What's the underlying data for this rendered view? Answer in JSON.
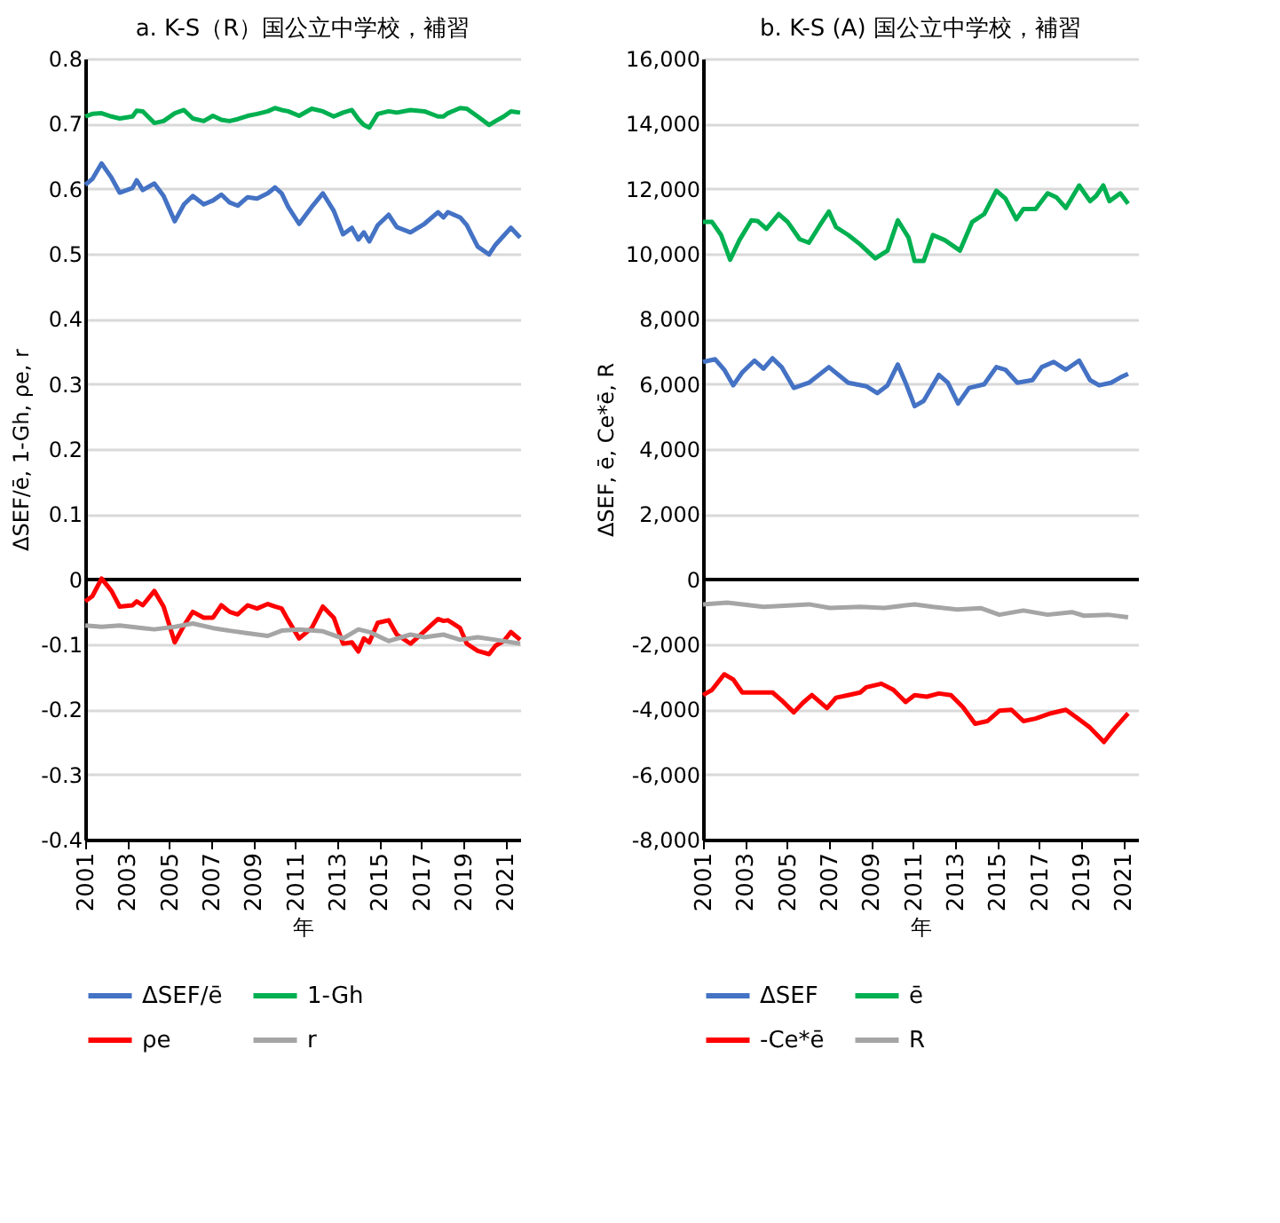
{
  "chart_data": [
    {
      "type": "line",
      "title": "a. K-S（R）国公立中学校，補習",
      "xlabel": "年",
      "ylabel": "ΔSEF/ē, 1-Gh, ρe, r",
      "xlim": [
        2001,
        2021.7
      ],
      "xticks": [
        2001,
        2003,
        2005,
        2007,
        2009,
        2011,
        2013,
        2015,
        2017,
        2019,
        2021
      ],
      "ylim": [
        -0.4,
        0.8
      ],
      "yticks": [
        -0.4,
        -0.3,
        -0.2,
        -0.1,
        0,
        0.1,
        0.2,
        0.3,
        0.4,
        0.5,
        0.6,
        0.7,
        0.8
      ],
      "grid": "y",
      "legend": "bottom",
      "line_style": "solid",
      "marker": "none",
      "x": [
        2001.0,
        2001.34,
        2001.78,
        2002.25,
        2002.64,
        2003.25,
        2003.45,
        2003.74,
        2004.29,
        2004.73,
        2005.26,
        2005.7,
        2006.12,
        2006.64,
        2007.08,
        2007.48,
        2007.87,
        2008.26,
        2008.73,
        2009.18,
        2009.69,
        2010.03,
        2010.35,
        2010.66,
        2011.18,
        2011.78,
        2012.31,
        2012.83,
        2013.27,
        2013.69,
        2014.0,
        2014.26,
        2014.52,
        2014.92,
        2015.44,
        2015.83,
        2016.48,
        2017.14,
        2017.79,
        2018.05,
        2018.26,
        2018.84,
        2019.16,
        2019.68,
        2020.22,
        2020.53,
        2020.92,
        2021.26,
        2021.7
      ],
      "series": [
        {
          "name": "ΔSEF/ē",
          "color": "#4472c4",
          "values": [
            0.606,
            0.615,
            0.639,
            0.617,
            0.594,
            0.601,
            0.613,
            0.598,
            0.608,
            0.589,
            0.55,
            0.576,
            0.589,
            0.576,
            0.582,
            0.591,
            0.579,
            0.574,
            0.587,
            0.585,
            0.593,
            0.602,
            0.593,
            0.572,
            0.546,
            0.572,
            0.593,
            0.566,
            0.53,
            0.54,
            0.522,
            0.533,
            0.519,
            0.544,
            0.56,
            0.541,
            0.533,
            0.546,
            0.564,
            0.556,
            0.564,
            0.556,
            0.544,
            0.511,
            0.499,
            0.514,
            0.528,
            0.54,
            0.525
          ]
        },
        {
          "name": "1-Gh",
          "color": "#00b050",
          "values": [
            0.711,
            0.715,
            0.716,
            0.711,
            0.708,
            0.711,
            0.72,
            0.719,
            0.701,
            0.704,
            0.716,
            0.721,
            0.708,
            0.704,
            0.712,
            0.706,
            0.704,
            0.707,
            0.712,
            0.715,
            0.719,
            0.724,
            0.721,
            0.719,
            0.712,
            0.723,
            0.719,
            0.711,
            0.717,
            0.721,
            0.707,
            0.698,
            0.694,
            0.715,
            0.719,
            0.717,
            0.721,
            0.719,
            0.711,
            0.711,
            0.716,
            0.724,
            0.723,
            0.711,
            0.698,
            0.704,
            0.711,
            0.719,
            0.717
          ]
        },
        {
          "name": "ρe",
          "color": "#ff0000",
          "values": [
            -0.034,
            -0.026,
            0.001,
            -0.018,
            -0.042,
            -0.04,
            -0.034,
            -0.04,
            -0.018,
            -0.042,
            -0.097,
            -0.071,
            -0.05,
            -0.059,
            -0.059,
            -0.04,
            -0.05,
            -0.054,
            -0.04,
            -0.045,
            -0.038,
            -0.042,
            -0.045,
            -0.063,
            -0.091,
            -0.075,
            -0.042,
            -0.059,
            -0.099,
            -0.097,
            -0.111,
            -0.091,
            -0.097,
            -0.067,
            -0.063,
            -0.085,
            -0.099,
            -0.08,
            -0.061,
            -0.064,
            -0.063,
            -0.075,
            -0.099,
            -0.11,
            -0.115,
            -0.102,
            -0.095,
            -0.081,
            -0.093
          ]
        },
        {
          "name": "r",
          "color": "#a5a5a5",
          "x": [
            2001.0,
            2001.78,
            2002.64,
            2003.74,
            2004.29,
            2005.26,
            2006.12,
            2007.08,
            2007.87,
            2008.73,
            2009.69,
            2010.35,
            2011.18,
            2012.31,
            2013.27,
            2014.0,
            2014.52,
            2015.44,
            2016.48,
            2017.14,
            2018.05,
            2018.84,
            2019.68,
            2020.53,
            2021.7
          ],
          "values": [
            -0.071,
            -0.073,
            -0.071,
            -0.075,
            -0.077,
            -0.073,
            -0.068,
            -0.075,
            -0.079,
            -0.083,
            -0.087,
            -0.079,
            -0.077,
            -0.08,
            -0.091,
            -0.077,
            -0.081,
            -0.095,
            -0.085,
            -0.089,
            -0.085,
            -0.093,
            -0.089,
            -0.093,
            -0.099
          ]
        }
      ]
    },
    {
      "type": "line",
      "title": "b. K-S (A) 国公立中学校，補習",
      "xlabel": "年",
      "ylabel": "ΔSEF, ē, Ce*ē, R",
      "xlim": [
        2001,
        2021.7
      ],
      "xticks": [
        2001,
        2003,
        2005,
        2007,
        2009,
        2011,
        2013,
        2015,
        2017,
        2019,
        2021
      ],
      "ylim": [
        -8000,
        16000
      ],
      "yticks": [
        {
          "value": -8000,
          "label": "-8,000"
        },
        {
          "value": -6000,
          "label": "-6,000"
        },
        {
          "value": -4000,
          "label": "-4,000"
        },
        {
          "value": -2000,
          "label": "-2,000"
        },
        0,
        {
          "value": 2000,
          "label": "2,000"
        },
        {
          "value": 4000,
          "label": "4,000"
        },
        {
          "value": 6000,
          "label": "6,000"
        },
        {
          "value": 8000,
          "label": "8,000"
        },
        {
          "value": 10000,
          "label": "10,000"
        },
        {
          "value": 12000,
          "label": "12,000"
        },
        {
          "value": 14000,
          "label": "14,000"
        },
        {
          "value": 16000,
          "label": "16,000"
        }
      ],
      "grid": "y",
      "legend": "bottom",
      "line_style": "solid",
      "marker": "none",
      "series": [
        {
          "name": "ΔSEF",
          "color": "#4472c4",
          "x": [
            2001.0,
            2001.58,
            2002.01,
            2002.44,
            2002.87,
            2003.45,
            2003.88,
            2004.31,
            2004.74,
            2005.32,
            2006.04,
            2006.99,
            2007.91,
            2008.77,
            2009.29,
            2009.78,
            2010.27,
            2010.64,
            2011.07,
            2011.5,
            2012.22,
            2012.65,
            2013.14,
            2013.66,
            2014.38,
            2014.96,
            2015.39,
            2015.96,
            2016.68,
            2017.12,
            2017.69,
            2018.27,
            2018.9,
            2019.42,
            2019.85,
            2020.42,
            2020.86,
            2021.23
          ],
          "values": [
            6680,
            6760,
            6440,
            5960,
            6360,
            6720,
            6470,
            6790,
            6520,
            5880,
            6040,
            6520,
            6040,
            5930,
            5720,
            5960,
            6600,
            6040,
            5320,
            5480,
            6280,
            6040,
            5400,
            5880,
            5990,
            6520,
            6440,
            6040,
            6120,
            6520,
            6680,
            6440,
            6720,
            6120,
            5960,
            6040,
            6200,
            6310
          ]
        },
        {
          "name": "ē",
          "color": "#00b050",
          "x": [
            2001.0,
            2001.43,
            2001.86,
            2002.29,
            2002.73,
            2003.3,
            2003.59,
            2004.02,
            2004.6,
            2005.03,
            2005.6,
            2006.04,
            2006.61,
            2006.99,
            2007.33,
            2007.91,
            2008.48,
            2009.2,
            2009.78,
            2010.27,
            2010.78,
            2011.07,
            2011.5,
            2011.94,
            2012.51,
            2013.23,
            2013.81,
            2014.38,
            2014.96,
            2015.39,
            2015.91,
            2016.25,
            2016.83,
            2017.4,
            2017.83,
            2018.27,
            2018.9,
            2019.42,
            2019.71,
            2020.05,
            2020.34,
            2020.86,
            2021.23
          ],
          "values": [
            10980,
            10980,
            10580,
            9820,
            10420,
            11030,
            11010,
            10770,
            11220,
            10980,
            10450,
            10340,
            10930,
            11300,
            10820,
            10580,
            10290,
            9860,
            10100,
            11030,
            10500,
            9780,
            9780,
            10580,
            10420,
            10100,
            10980,
            11220,
            11940,
            11700,
            11060,
            11380,
            11380,
            11860,
            11730,
            11410,
            12100,
            11620,
            11780,
            12100,
            11620,
            11860,
            11540
          ]
        },
        {
          "name": "-Ce*ē",
          "color": "#ff0000",
          "x": [
            2001.0,
            2001.43,
            2002.01,
            2002.44,
            2002.87,
            2003.45,
            2003.88,
            2004.31,
            2004.74,
            2005.32,
            2005.75,
            2006.18,
            2006.9,
            2007.33,
            2007.91,
            2008.48,
            2008.77,
            2009.49,
            2010.06,
            2010.64,
            2011.07,
            2011.65,
            2012.22,
            2012.8,
            2013.37,
            2013.95,
            2014.53,
            2015.1,
            2015.68,
            2016.25,
            2016.83,
            2017.55,
            2018.27,
            2018.84,
            2019.42,
            2020.08,
            2020.57,
            2021.23
          ],
          "values": [
            -3560,
            -3400,
            -2920,
            -3080,
            -3480,
            -3480,
            -3480,
            -3480,
            -3720,
            -4090,
            -3800,
            -3560,
            -3960,
            -3640,
            -3560,
            -3480,
            -3320,
            -3210,
            -3400,
            -3770,
            -3560,
            -3610,
            -3510,
            -3560,
            -3930,
            -4440,
            -4360,
            -4040,
            -4010,
            -4360,
            -4280,
            -4120,
            -4010,
            -4280,
            -4560,
            -5000,
            -4600,
            -4120
          ]
        },
        {
          "name": "R",
          "color": "#a5a5a5",
          "x": [
            2001.0,
            2002.15,
            2003.88,
            2006.04,
            2007.04,
            2008.48,
            2009.63,
            2011.07,
            2011.94,
            2013.09,
            2014.24,
            2015.1,
            2016.25,
            2017.4,
            2018.55,
            2019.13,
            2020.28,
            2021.23
          ],
          "values": [
            -770,
            -720,
            -850,
            -770,
            -880,
            -850,
            -880,
            -770,
            -850,
            -930,
            -890,
            -1090,
            -960,
            -1090,
            -1010,
            -1120,
            -1090,
            -1170
          ]
        }
      ]
    }
  ]
}
